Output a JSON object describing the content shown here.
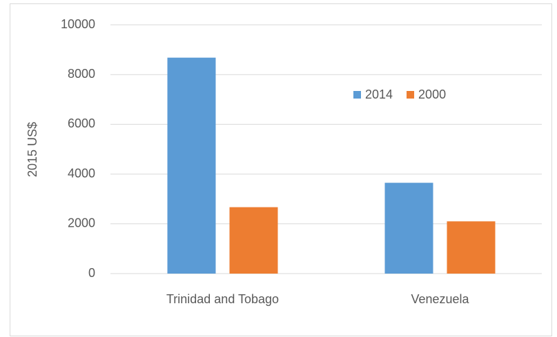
{
  "chart_data": {
    "type": "bar",
    "categories": [
      "Trinidad and Tobago",
      "Venezuela"
    ],
    "series": [
      {
        "name": "2014",
        "color": "#5b9bd5",
        "values": [
          8680,
          3650
        ]
      },
      {
        "name": "2000",
        "color": "#ed7d31",
        "values": [
          2670,
          2100
        ]
      }
    ],
    "y_label": "2015 US$",
    "ylim": [
      0,
      10000
    ],
    "yticks": [
      0,
      2000,
      4000,
      6000,
      8000,
      10000
    ],
    "grid": true,
    "legend": "upper right"
  }
}
